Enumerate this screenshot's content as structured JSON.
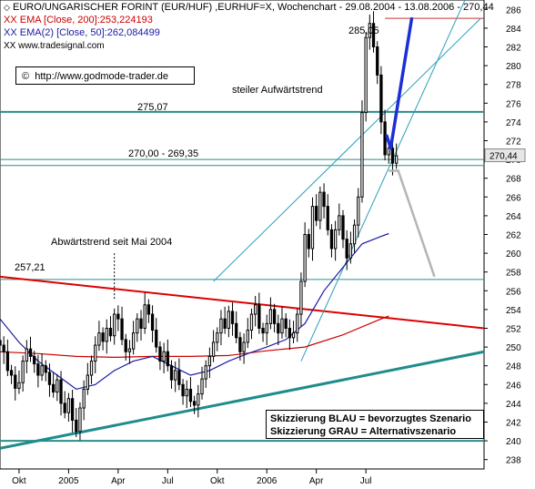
{
  "header": {
    "title": "EURO/UNGARISCHER FORINT (EUR/HUF) ,EURHUF=X, Wochenchart - 29.08.2004 - 13.08.2006 - 270,44",
    "ema200": "XX EMA [Close, 200]:253,224193",
    "ema50": "XX EMA(2) [Close, 50]:262,084499",
    "source": "XX www.tradesignal.com"
  },
  "url_box": "http://www.godmode-trader.de",
  "annotations": {
    "peak": "285,05",
    "steep_trend": "steiler Aufwärtstrend",
    "level_275": "275,07",
    "level_270": "270,00 - 269,35",
    "downtrend": "Abwärtstrend seit Mai 2004",
    "level_257": "257,21",
    "last_price": "270,44"
  },
  "legend": {
    "blue": "Skizzierung BLAU = bevorzugtes Szenario",
    "gray": "Skizzierung GRAU = Alternativszenario"
  },
  "colors": {
    "candle": "#000000",
    "ema200": "#cc0000",
    "ema50": "#1a1aa6",
    "horizontal": "#2e8b8b",
    "downtrend": "#dd0000",
    "support": "#1f8c8c",
    "channel": "#2aa0b8",
    "blue_scenario": "#1c2fd6",
    "gray_scenario": "#b4b4b4",
    "resistance_top": "#cc3333"
  },
  "chart_data": {
    "type": "candlestick",
    "ylim": [
      237,
      287
    ],
    "y_ticks": [
      238,
      240,
      242,
      244,
      246,
      248,
      250,
      252,
      254,
      256,
      258,
      260,
      262,
      264,
      266,
      268,
      270,
      272,
      274,
      276,
      278,
      280,
      282,
      284,
      286
    ],
    "x_labels": [
      {
        "label": "Okt",
        "week": 5
      },
      {
        "label": "2005",
        "week": 18
      },
      {
        "label": "Apr",
        "week": 31
      },
      {
        "label": "Jul",
        "week": 44
      },
      {
        "label": "Okt",
        "week": 57
      },
      {
        "label": "2006",
        "week": 70
      },
      {
        "label": "Apr",
        "week": 83
      },
      {
        "label": "Jul",
        "week": 96
      }
    ],
    "week_span": [
      0,
      127
    ],
    "closes": [
      250.2,
      249.5,
      247.5,
      247.0,
      245.6,
      246.2,
      248.5,
      249.8,
      249.0,
      248.2,
      247.0,
      248.0,
      247.3,
      246.0,
      245.2,
      246.5,
      244.0,
      243.0,
      244.5,
      242.2,
      241.0,
      243.5,
      245.5,
      247.0,
      248.5,
      250.2,
      251.5,
      250.6,
      252.0,
      251.2,
      253.5,
      253.0,
      250.8,
      249.5,
      249.8,
      251.5,
      253.0,
      252.0,
      254.5,
      253.5,
      251.8,
      250.0,
      248.5,
      249.5,
      248.0,
      246.5,
      247.5,
      246.0,
      244.8,
      245.5,
      244.2,
      243.8,
      245.0,
      246.6,
      248.0,
      249.0,
      250.5,
      251.5,
      253.0,
      252.0,
      253.8,
      252.5,
      251.0,
      249.5,
      250.5,
      251.8,
      253.5,
      254.5,
      252.0,
      251.5,
      252.5,
      254.0,
      252.5,
      251.5,
      253.0,
      252.0,
      251.0,
      251.5,
      253.5,
      257.0,
      262.0,
      260.5,
      265.0,
      263.5,
      266.5,
      265.0,
      262.5,
      260.5,
      262.5,
      264.0,
      261.5,
      259.5,
      261.0,
      263.0,
      266.0,
      275.0,
      283.0,
      284.5,
      282.0,
      279.0,
      274.0,
      270.5,
      271.2,
      269.6,
      270.4
    ],
    "ema50": [
      [
        0,
        253.0
      ],
      [
        5,
        250.5
      ],
      [
        10,
        248.5
      ],
      [
        15,
        247.0
      ],
      [
        20,
        245.5
      ],
      [
        25,
        246.0
      ],
      [
        30,
        247.5
      ],
      [
        35,
        248.5
      ],
      [
        40,
        249.0
      ],
      [
        45,
        248.0
      ],
      [
        50,
        247.0
      ],
      [
        55,
        247.5
      ],
      [
        60,
        248.5
      ],
      [
        65,
        249.3
      ],
      [
        70,
        250.0
      ],
      [
        75,
        250.8
      ],
      [
        80,
        252.5
      ],
      [
        85,
        256.0
      ],
      [
        90,
        258.5
      ],
      [
        95,
        261.0
      ],
      [
        100,
        261.8
      ],
      [
        102,
        262.1
      ]
    ],
    "ema200": [
      [
        0,
        249.5
      ],
      [
        10,
        249.3
      ],
      [
        20,
        249.0
      ],
      [
        30,
        248.9
      ],
      [
        40,
        249.0
      ],
      [
        50,
        249.0
      ],
      [
        60,
        249.1
      ],
      [
        70,
        249.6
      ],
      [
        80,
        250.0
      ],
      [
        90,
        251.3
      ],
      [
        100,
        253.0
      ],
      [
        102,
        253.3
      ]
    ],
    "horizontal_levels": [
      285.05,
      275.07,
      270.0,
      269.35,
      257.21,
      240.0
    ],
    "downtrend_line": [
      [
        0,
        257.5
      ],
      [
        127,
        252.0
      ]
    ],
    "support_line": [
      [
        0,
        239.2
      ],
      [
        127,
        249.5
      ]
    ],
    "channel_upper": [
      [
        56,
        257
      ],
      [
        126,
        285
      ]
    ],
    "channel_lower": [
      [
        79,
        248.5
      ],
      [
        122,
        287
      ]
    ],
    "blue_path": [
      [
        102.5,
        271.2
      ],
      [
        108,
        285
      ]
    ],
    "gray_path": [
      [
        102,
        268.8
      ],
      [
        104.5,
        268.8
      ],
      [
        114,
        257.5
      ]
    ],
    "last_price": 270.44
  }
}
